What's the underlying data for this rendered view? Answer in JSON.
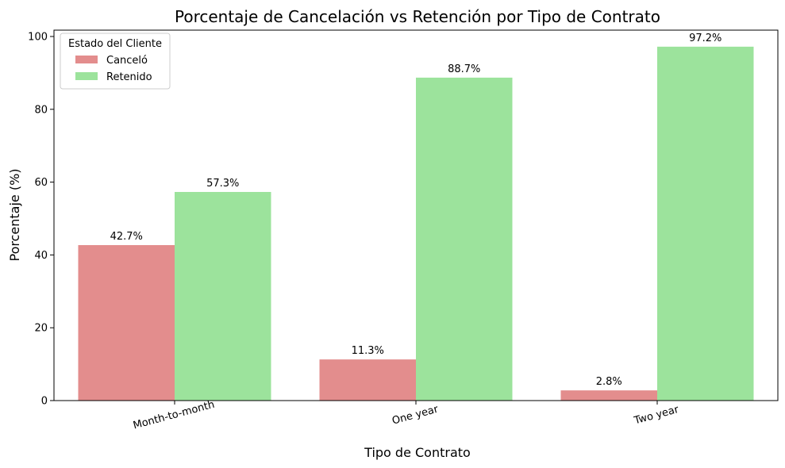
{
  "chart_data": {
    "type": "bar",
    "title": "Porcentaje de Cancelación vs Retención por Tipo de Contrato",
    "xlabel": "Tipo de Contrato",
    "ylabel": "Porcentaje (%)",
    "categories": [
      "Month-to-month",
      "One year",
      "Two year"
    ],
    "series": [
      {
        "name": "Canceló",
        "values": [
          42.7,
          11.3,
          2.8
        ],
        "labels": [
          "42.7%",
          "11.3%",
          "2.8%"
        ],
        "color": "#e38d8d"
      },
      {
        "name": "Retenido",
        "values": [
          57.3,
          88.7,
          97.2
        ],
        "labels": [
          "57.3%",
          "88.7%",
          "97.2%"
        ],
        "color": "#9ce39c"
      }
    ],
    "ylim": [
      0,
      100
    ],
    "yticks": [
      "0",
      "20",
      "40",
      "60",
      "80",
      "100"
    ],
    "legend": {
      "title": "Estado del Cliente",
      "position": "top-left"
    },
    "grid": false
  }
}
